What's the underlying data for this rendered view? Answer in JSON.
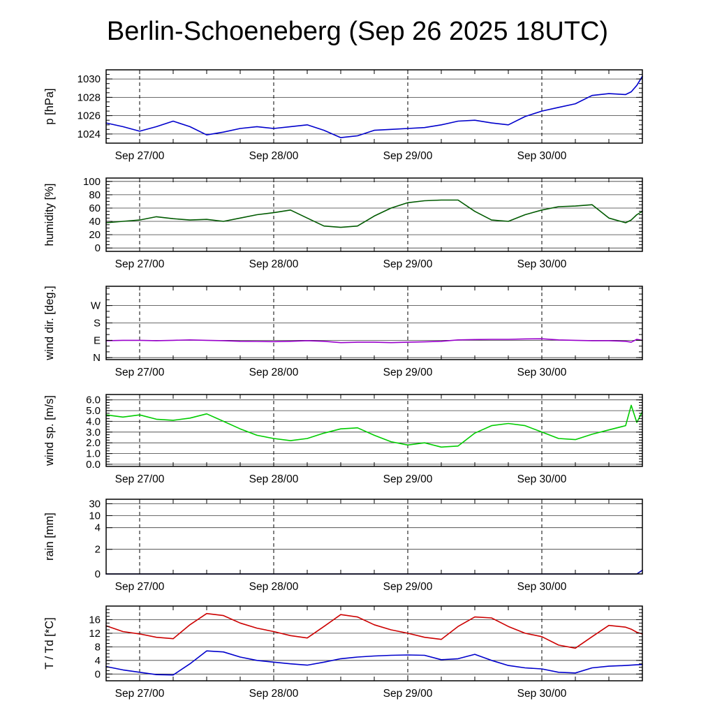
{
  "title": "Berlin-Schoeneberg (Sep 26 2025 18UTC)",
  "chart_data": {
    "type": "line",
    "description": "Six stacked meteogram panels sharing a common time axis from Sep 26 2025 18UTC to Sep 30 2025 18UTC",
    "x": {
      "total_hours": 96,
      "minor_step": 6,
      "hours": [
        0,
        3,
        6,
        9,
        12,
        15,
        18,
        21,
        24,
        27,
        30,
        33,
        36,
        39,
        42,
        45,
        48,
        51,
        54,
        57,
        60,
        63,
        66,
        69,
        72,
        75,
        78,
        81,
        84,
        87,
        90,
        93,
        94,
        95,
        96
      ],
      "ticks": [
        {
          "hour": 6,
          "label": "Sep 27/00"
        },
        {
          "hour": 30,
          "label": "Sep 28/00"
        },
        {
          "hour": 54,
          "label": "Sep 29/00"
        },
        {
          "hour": 78,
          "label": "Sep 30/00"
        }
      ]
    },
    "panels": [
      {
        "id": "pressure",
        "ylabel": "p [hPa]",
        "ymin": 1023,
        "ymax": 1031,
        "yminor": 0.5,
        "yticks": [
          {
            "v": 1024,
            "label": "1024"
          },
          {
            "v": 1026,
            "label": "1026"
          },
          {
            "v": 1028,
            "label": "1028"
          },
          {
            "v": 1030,
            "label": "1030"
          }
        ],
        "series": [
          {
            "name": "pressure",
            "color": "#0000cc",
            "values": [
              1025.2,
              1024.8,
              1024.3,
              1024.8,
              1025.4,
              1024.8,
              1023.9,
              1024.2,
              1024.6,
              1024.8,
              1024.6,
              1024.8,
              1025.0,
              1024.4,
              1023.6,
              1023.8,
              1024.4,
              1024.5,
              1024.6,
              1024.7,
              1025.0,
              1025.4,
              1025.5,
              1025.2,
              1025.0,
              1025.9,
              1026.5,
              1026.9,
              1027.3,
              1028.2,
              1028.4,
              1028.3,
              1028.6,
              1029.3,
              1030.3
            ]
          }
        ]
      },
      {
        "id": "humidity",
        "ylabel": "humidity [%]",
        "ymin": -5,
        "ymax": 105,
        "yminor": 5,
        "yticks": [
          {
            "v": 0,
            "label": "0"
          },
          {
            "v": 20,
            "label": "20"
          },
          {
            "v": 40,
            "label": "40"
          },
          {
            "v": 60,
            "label": "60"
          },
          {
            "v": 80,
            "label": "80"
          },
          {
            "v": 100,
            "label": "100"
          }
        ],
        "series": [
          {
            "name": "humidity",
            "color": "#005a00",
            "values": [
              38,
              40,
              42,
              47,
              44,
              42,
              43,
              40,
              45,
              50,
              53,
              57,
              45,
              33,
              31,
              33,
              48,
              60,
              68,
              71,
              72,
              72,
              55,
              42,
              40,
              50,
              57,
              62,
              63,
              65,
              45,
              38,
              42,
              50,
              55
            ]
          }
        ]
      },
      {
        "id": "wind-direction",
        "ylabel": "wind dir. [deg.]",
        "ymin": -10,
        "ymax": 370,
        "yminor": 30,
        "yticks": [
          {
            "v": 0,
            "label": "N"
          },
          {
            "v": 90,
            "label": "E"
          },
          {
            "v": 180,
            "label": "S"
          },
          {
            "v": 270,
            "label": "W"
          }
        ],
        "series": [
          {
            "name": "wind-direction",
            "color": "#9900cc",
            "values": [
              88,
              90,
              90,
              88,
              90,
              92,
              90,
              88,
              85,
              84,
              83,
              85,
              88,
              85,
              78,
              80,
              80,
              78,
              80,
              82,
              85,
              92,
              94,
              95,
              95,
              97,
              98,
              92,
              90,
              88,
              88,
              85,
              80,
              95,
              90
            ]
          }
        ]
      },
      {
        "id": "wind-speed",
        "ylabel": "wind sp. [m/s]",
        "ymin": -0.2,
        "ymax": 6.5,
        "yminor": 0.25,
        "yticks": [
          {
            "v": 0,
            "label": "0.0"
          },
          {
            "v": 1,
            "label": "1.0"
          },
          {
            "v": 2,
            "label": "2.0"
          },
          {
            "v": 3,
            "label": "3.0"
          },
          {
            "v": 4,
            "label": "4.0"
          },
          {
            "v": 5,
            "label": "5.0"
          },
          {
            "v": 6,
            "label": "6.0"
          }
        ],
        "series": [
          {
            "name": "wind-speed",
            "color": "#00cc00",
            "values": [
              4.6,
              4.4,
              4.6,
              4.2,
              4.1,
              4.3,
              4.7,
              4.0,
              3.3,
              2.7,
              2.4,
              2.2,
              2.4,
              2.9,
              3.3,
              3.4,
              2.7,
              2.1,
              1.8,
              2.0,
              1.6,
              1.7,
              2.9,
              3.6,
              3.8,
              3.6,
              3.0,
              2.4,
              2.3,
              2.8,
              3.2,
              3.6,
              5.5,
              3.9,
              4.9
            ]
          }
        ]
      },
      {
        "id": "rain",
        "ylabel": "rain [mm]",
        "scale": "custom",
        "yticks": [
          {
            "v": 0,
            "f": 0.0,
            "label": "0"
          },
          {
            "v": 2,
            "f": 0.33,
            "label": "2"
          },
          {
            "v": 4,
            "f": 0.62,
            "label": "4"
          },
          {
            "v": 10,
            "f": 0.78,
            "label": "10"
          },
          {
            "v": 30,
            "f": 0.94,
            "label": "30"
          }
        ],
        "series": [
          {
            "name": "rain",
            "color": "#0000aa",
            "values": [
              0,
              0,
              0,
              0,
              0,
              0,
              0,
              0,
              0,
              0,
              0,
              0,
              0,
              0,
              0,
              0,
              0,
              0,
              0,
              0,
              0,
              0,
              0,
              0,
              0,
              0,
              0,
              0,
              0,
              0,
              0,
              0,
              0,
              0,
              0.3
            ]
          }
        ]
      },
      {
        "id": "temperature",
        "ylabel": "T / Td [*C]",
        "ymin": -2,
        "ymax": 20,
        "yminor": 1,
        "yticks": [
          {
            "v": 0,
            "label": "0"
          },
          {
            "v": 4,
            "label": "4"
          },
          {
            "v": 8,
            "label": "8"
          },
          {
            "v": 12,
            "label": "12"
          },
          {
            "v": 16,
            "label": "16"
          }
        ],
        "series": [
          {
            "name": "temperature",
            "color": "#cc0000",
            "values": [
              14.2,
              12.5,
              11.8,
              10.8,
              10.4,
              14.5,
              17.8,
              17.2,
              15.0,
              13.5,
              12.5,
              11.3,
              10.6,
              14.0,
              17.5,
              16.8,
              14.5,
              13.0,
              12.0,
              10.8,
              10.2,
              14.0,
              16.8,
              16.5,
              14.0,
              12.0,
              11.0,
              8.5,
              7.6,
              11.0,
              14.3,
              13.8,
              13.2,
              12.3,
              11.8
            ]
          },
          {
            "name": "dewpoint",
            "color": "#0000cc",
            "values": [
              2.2,
              1.2,
              0.5,
              -0.2,
              -0.3,
              3.0,
              6.8,
              6.5,
              5.0,
              4.0,
              3.5,
              3.0,
              2.6,
              3.5,
              4.5,
              5.0,
              5.3,
              5.5,
              5.6,
              5.5,
              4.2,
              4.5,
              5.8,
              4.0,
              2.5,
              1.8,
              1.5,
              0.5,
              0.3,
              1.8,
              2.3,
              2.5,
              2.6,
              2.7,
              2.8
            ]
          }
        ]
      }
    ]
  }
}
